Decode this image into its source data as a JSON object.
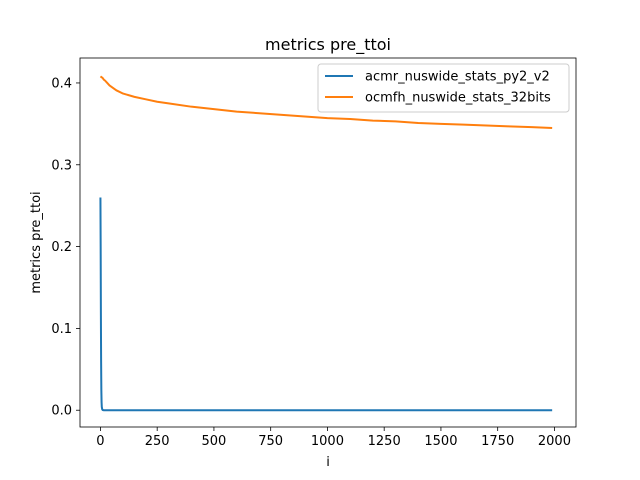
{
  "chart_data": {
    "type": "line",
    "title": "metrics pre_ttoi",
    "xlabel": "i",
    "ylabel": "metrics pre_ttoi",
    "xlim": [
      -90,
      2095
    ],
    "ylim": [
      -0.0205,
      0.4305
    ],
    "xticks": [
      0,
      250,
      500,
      750,
      1000,
      1250,
      1500,
      1750,
      2000
    ],
    "yticks": [
      0.0,
      0.1,
      0.2,
      0.3,
      0.4
    ],
    "xtick_labels": [
      "0",
      "250",
      "500",
      "750",
      "1000",
      "1250",
      "1500",
      "1750",
      "2000"
    ],
    "ytick_labels": [
      "0.0",
      "0.1",
      "0.2",
      "0.3",
      "0.4"
    ],
    "grid": false,
    "legend_position": "top-right",
    "series": [
      {
        "name": "acmr_nuswide_stats_py2_v2",
        "color": "#1f77b4",
        "x": [
          0,
          1,
          2,
          3,
          4,
          5,
          6,
          8,
          10,
          15,
          20,
          50,
          100,
          500,
          1000,
          1500,
          1990
        ],
        "y": [
          0.26,
          0.2,
          0.12,
          0.06,
          0.025,
          0.01,
          0.004,
          0.001,
          0.0003,
          0.0,
          0.0,
          0.0,
          0.0,
          0.0,
          0.0,
          0.0,
          0.0
        ]
      },
      {
        "name": "ocmfh_nuswide_stats_32bits",
        "color": "#ff7f0e",
        "x": [
          0,
          5,
          10,
          15,
          20,
          30,
          40,
          50,
          70,
          100,
          150,
          200,
          250,
          300,
          400,
          500,
          600,
          700,
          800,
          900,
          1000,
          1100,
          1200,
          1300,
          1400,
          1500,
          1600,
          1700,
          1800,
          1900,
          1990
        ],
        "y": [
          0.408,
          0.407,
          0.406,
          0.404,
          0.403,
          0.4,
          0.397,
          0.395,
          0.391,
          0.387,
          0.383,
          0.38,
          0.377,
          0.375,
          0.371,
          0.368,
          0.365,
          0.363,
          0.361,
          0.359,
          0.357,
          0.356,
          0.354,
          0.353,
          0.351,
          0.35,
          0.349,
          0.348,
          0.347,
          0.346,
          0.345
        ]
      }
    ]
  }
}
